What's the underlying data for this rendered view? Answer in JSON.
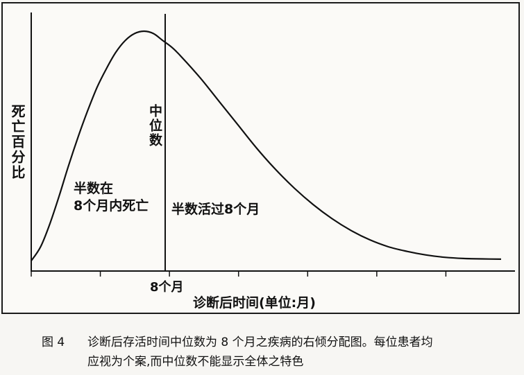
{
  "figure": {
    "ylabel": "死亡百分比",
    "median_label": "中位数",
    "left_annotation_line1": "半数在",
    "left_annotation_line2": "8个月内死亡",
    "right_annotation": "半数活过8个月",
    "median_tick_label": "8个月",
    "xlabel": "诊断后时间(单位:月)"
  },
  "caption": {
    "number": "图 4",
    "line1": "诊断后存活时间中位数为 8 个月之疾病的右倾分配图。每位患者均",
    "line2": "应视为个案,而中位数不能显示全体之特色"
  },
  "chart_data": {
    "type": "area",
    "description_curve": "right-skewed distribution",
    "x_unit_label": "诊断后时间(单位:月)",
    "y_unit_label": "死亡百分比",
    "median_x_label": "8个月",
    "curve_points": [
      [
        0,
        0.02
      ],
      [
        0.5,
        0.08
      ],
      [
        1,
        0.18
      ],
      [
        1.5,
        0.3
      ],
      [
        2,
        0.43
      ],
      [
        2.5,
        0.55
      ],
      [
        3,
        0.66
      ],
      [
        3.5,
        0.76
      ],
      [
        4,
        0.84
      ],
      [
        4.5,
        0.91
      ],
      [
        5,
        0.96
      ],
      [
        5.5,
        0.99
      ],
      [
        6,
        1.0
      ],
      [
        6.5,
        0.99
      ],
      [
        7,
        0.96
      ],
      [
        7.5,
        0.93
      ],
      [
        8,
        0.89
      ],
      [
        9,
        0.8
      ],
      [
        10,
        0.7
      ],
      [
        11,
        0.6
      ],
      [
        12,
        0.5
      ],
      [
        13,
        0.41
      ],
      [
        14,
        0.33
      ],
      [
        15,
        0.26
      ],
      [
        16,
        0.2
      ],
      [
        17,
        0.15
      ],
      [
        18,
        0.11
      ],
      [
        19,
        0.08
      ],
      [
        20,
        0.06
      ],
      [
        21,
        0.045
      ],
      [
        22,
        0.035
      ],
      [
        23,
        0.03
      ],
      [
        24,
        0.028
      ],
      [
        25,
        0.027
      ]
    ],
    "x_ticks_count": 7
  }
}
